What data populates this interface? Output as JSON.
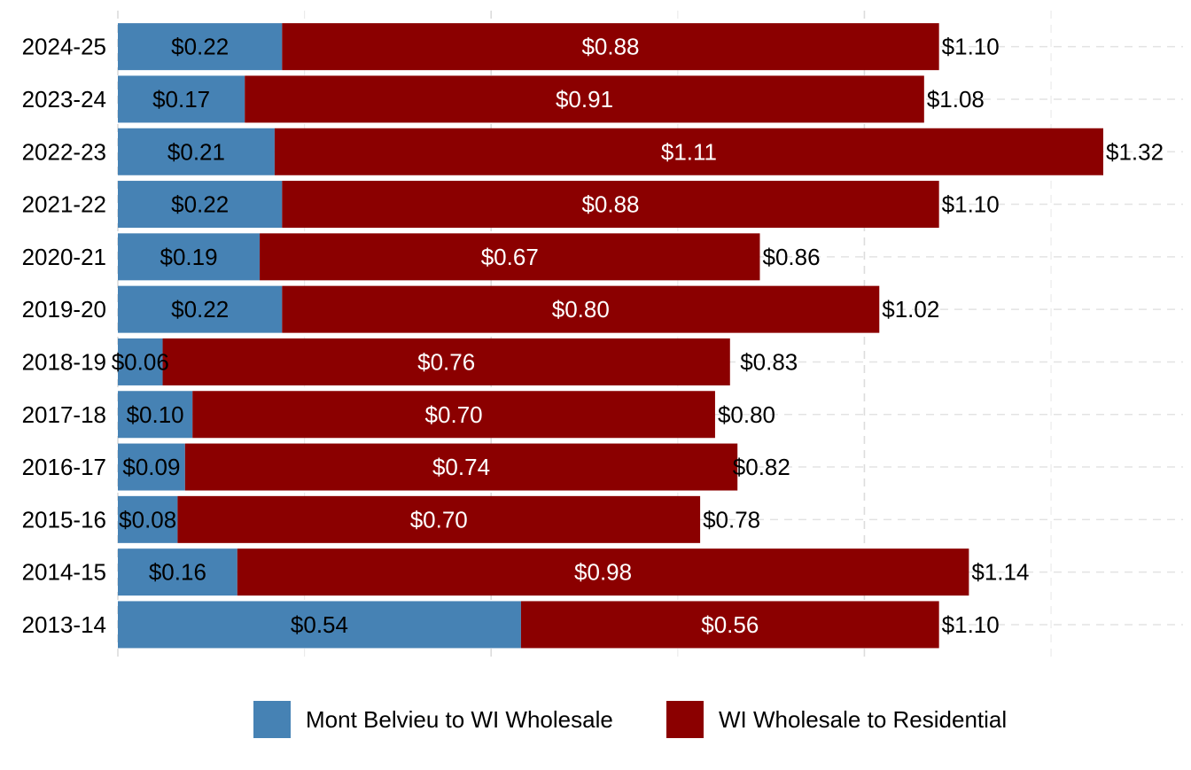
{
  "chart_data": {
    "type": "bar",
    "orientation": "horizontal",
    "stacked": true,
    "title": "",
    "xlabel": "",
    "ylabel": "",
    "xlim": [
      0,
      1.32
    ],
    "grid": true,
    "legend_position": "bottom",
    "categories": [
      "2024-25",
      "2023-24",
      "2022-23",
      "2021-22",
      "2020-21",
      "2019-20",
      "2018-19",
      "2017-18",
      "2016-17",
      "2015-16",
      "2014-15",
      "2013-14"
    ],
    "series": [
      {
        "name": "Mont Belvieu to WI Wholesale",
        "color": "#4682b4",
        "values": [
          0.22,
          0.17,
          0.21,
          0.22,
          0.19,
          0.22,
          0.06,
          0.1,
          0.09,
          0.08,
          0.16,
          0.54
        ],
        "labels": [
          "$0.22",
          "$0.17",
          "$0.21",
          "$0.22",
          "$0.19",
          "$0.22",
          "$0.06",
          "$0.10",
          "$0.09",
          "$0.08",
          "$0.16",
          "$0.54"
        ]
      },
      {
        "name": "WI Wholesale to Residential",
        "color": "#8b0000",
        "values": [
          0.88,
          0.91,
          1.11,
          0.88,
          0.67,
          0.8,
          0.76,
          0.7,
          0.74,
          0.7,
          0.98,
          0.56
        ],
        "labels": [
          "$0.88",
          "$0.91",
          "$1.11",
          "$0.88",
          "$0.67",
          "$0.80",
          "$0.76",
          "$0.70",
          "$0.74",
          "$0.70",
          "$0.98",
          "$0.56"
        ]
      }
    ],
    "totals": [
      1.1,
      1.08,
      1.32,
      1.1,
      0.86,
      1.02,
      0.83,
      0.8,
      0.82,
      0.78,
      1.14,
      1.1
    ],
    "total_labels": [
      "$1.10",
      "$1.08",
      "$1.32",
      "$1.10",
      "$0.86",
      "$1.02",
      "$0.83",
      "$0.80",
      "$0.82",
      "$0.78",
      "$1.14",
      "$1.10"
    ]
  }
}
